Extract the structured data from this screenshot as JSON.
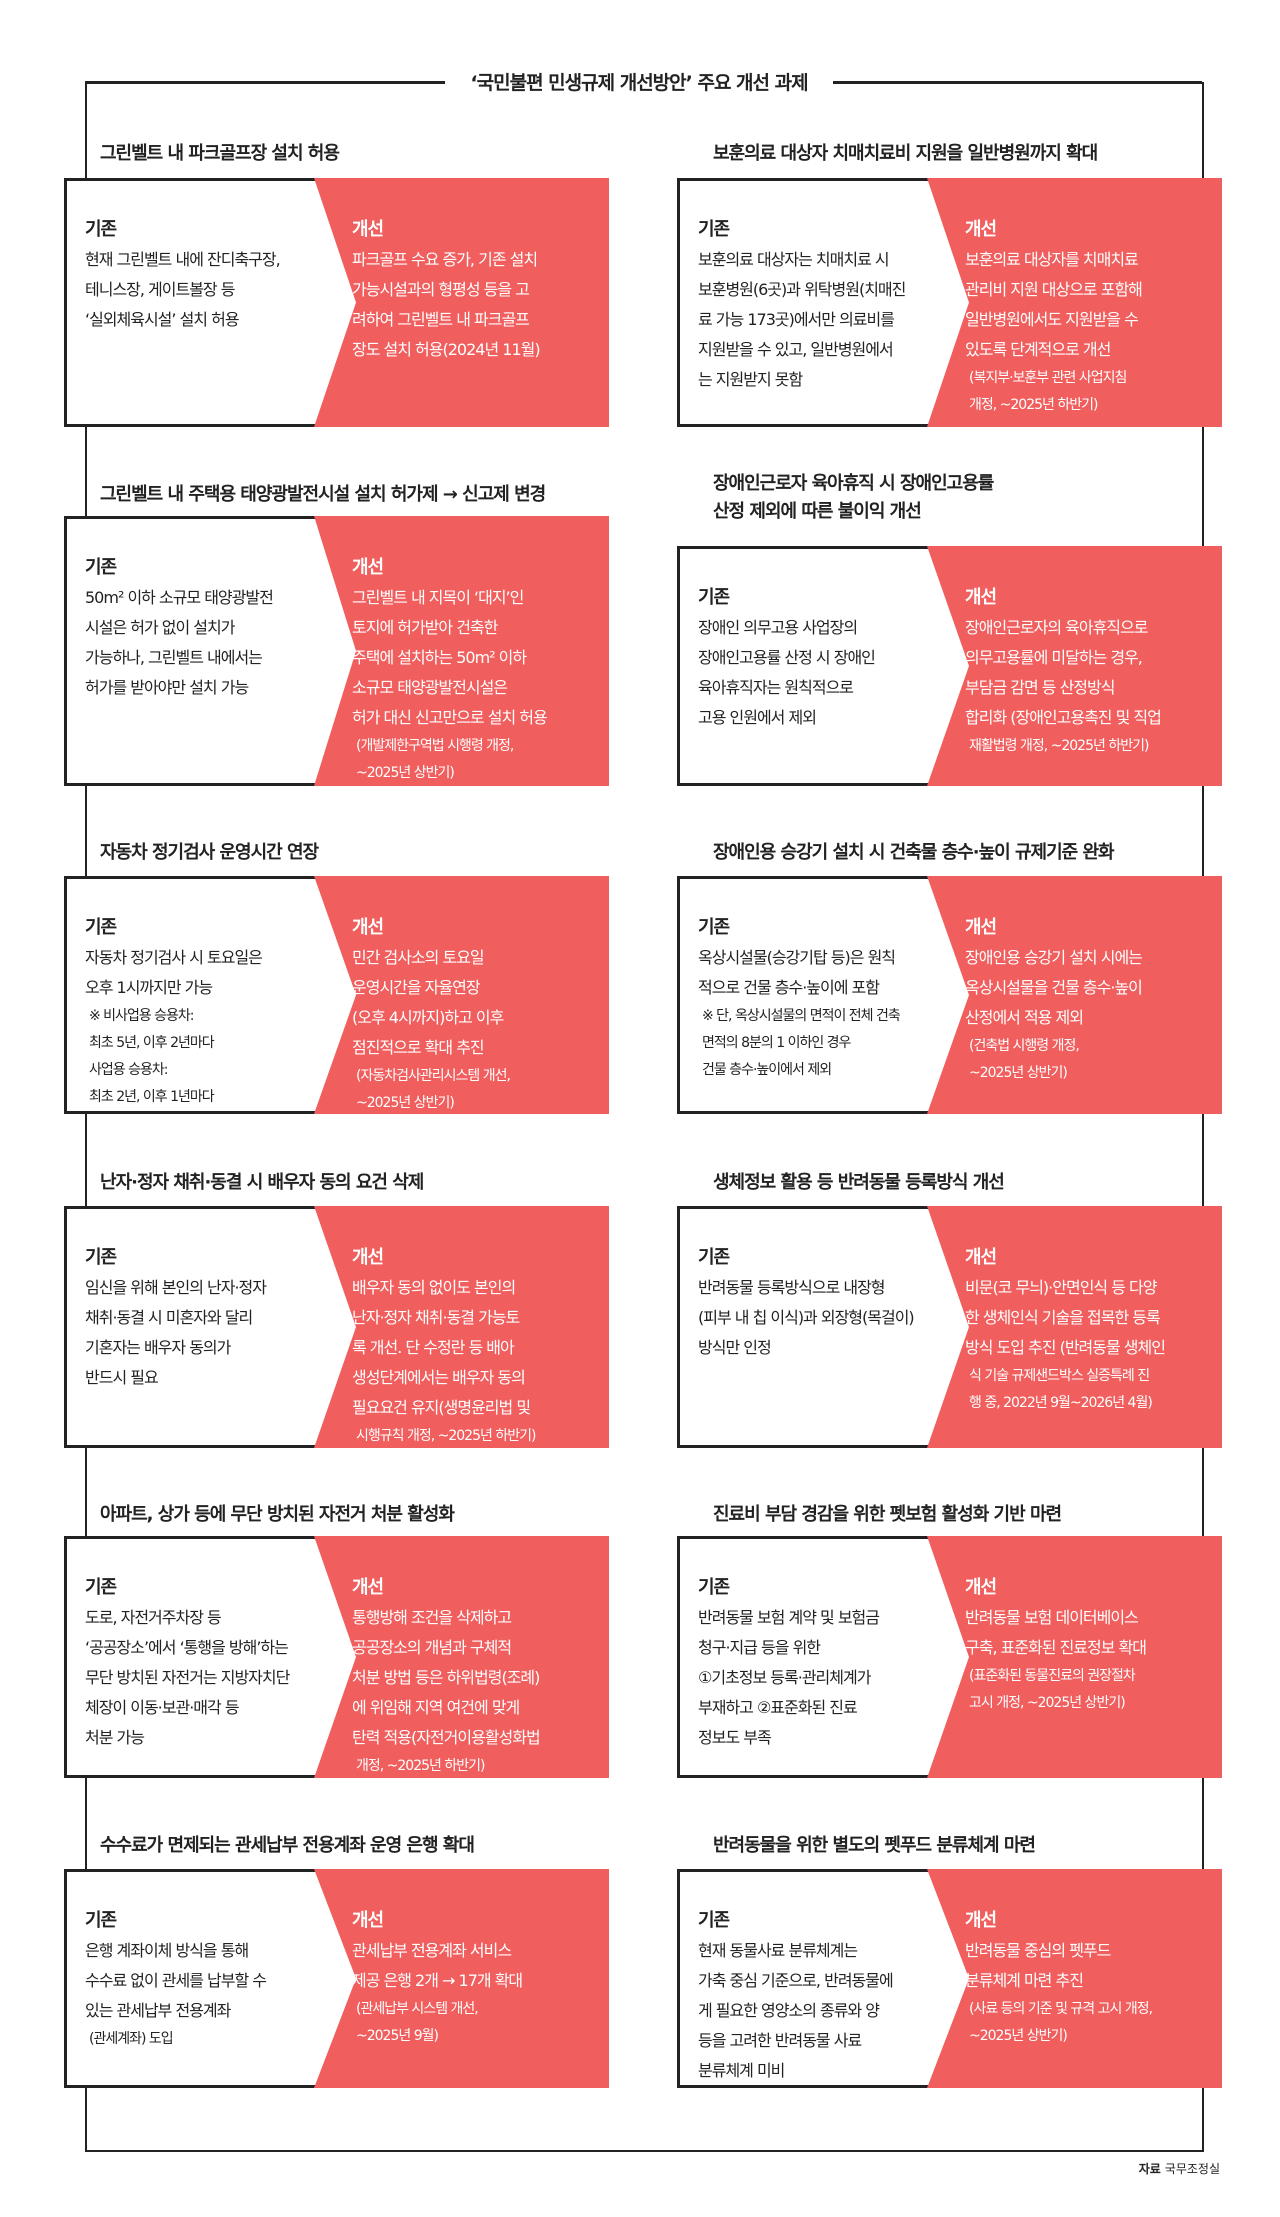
{
  "title": "‘국민불편 민생규제 개선방안’ 주요 개선 과제",
  "labels": {
    "before": "기존",
    "after": "개선"
  },
  "colors": {
    "accent": "#f05e5e",
    "border": "#222222"
  },
  "items": [
    {
      "title": [
        "그린벨트 내 파크골프장 설치 허용"
      ],
      "before": {
        "lines": [
          "현재 그린벨트 내에 잔디축구장,",
          "테니스장, 게이트볼장 등",
          "‘실외체육시설’ 설치 허용"
        ],
        "small": []
      },
      "after": {
        "lines": [
          "파크골프 수요 증가, 기존 설치",
          "가능시설과의 형평성 등을 고",
          "려하여 그린벨트 내 파크골프",
          "장도 설치 허용(2024년 11월)"
        ],
        "small": []
      }
    },
    {
      "title": [
        "보훈의료 대상자 치매치료비 지원을 일반병원까지 확대"
      ],
      "before": {
        "lines": [
          "보훈의료 대상자는 치매치료 시",
          "보훈병원(6곳)과 위탁병원(치매진",
          "료 가능 173곳)에서만 의료비를",
          "지원받을 수 있고, 일반병원에서",
          "는 지원받지 못함"
        ],
        "small": []
      },
      "after": {
        "lines": [
          "보훈의료 대상자를 치매치료",
          "관리비 지원 대상으로 포함해",
          "일반병원에서도 지원받을 수",
          "있도록 단계적으로 개선"
        ],
        "small": [
          "(복지부·보훈부 관련 사업지침",
          " 개정, ~2025년 하반기)"
        ]
      }
    },
    {
      "title": [
        "그린벨트 내 주택용 태양광발전시설 설치 허가제 → 신고제 변경"
      ],
      "before": {
        "lines": [
          "50m² 이하 소규모 태양광발전",
          "시설은 허가 없이 설치가",
          "가능하나, 그린벨트 내에서는",
          "허가를 받아야만 설치 가능"
        ],
        "small": []
      },
      "after": {
        "lines": [
          "그린벨트 내 지목이 ‘대지’인",
          "토지에 허가받아 건축한",
          "주택에 설치하는 50m² 이하",
          "소규모 태양광발전시설은",
          "허가 대신 신고만으로 설치 허용"
        ],
        "small": [
          "(개발제한구역법 시행령 개정,",
          " ~2025년 상반기)"
        ]
      }
    },
    {
      "title": [
        "장애인근로자 육아휴직 시 장애인고용률",
        "산정 제외에 따른 불이익 개선"
      ],
      "before": {
        "lines": [
          "장애인 의무고용 사업장의",
          "장애인고용률 산정 시 장애인",
          "육아휴직자는 원칙적으로",
          "고용 인원에서 제외"
        ],
        "small": []
      },
      "after": {
        "lines": [
          "장애인근로자의 육아휴직으로",
          "의무고용률에 미달하는 경우,",
          "부담금 감면 등 산정방식",
          "합리화 (장애인고용촉진 및 직업"
        ],
        "small": [
          "재활법령 개정, ~2025년 하반기)"
        ]
      }
    },
    {
      "title": [
        "자동차 정기검사 운영시간 연장"
      ],
      "before": {
        "lines": [
          "자동차 정기검사 시 토요일은",
          "오후 1시까지만 가능"
        ],
        "small": [
          "※ 비사업용 승용차:",
          "   최초 5년, 이후 2년마다",
          "  사업용 승용차:",
          "   최초 2년, 이후 1년마다"
        ]
      },
      "after": {
        "lines": [
          "민간 검사소의 토요일",
          "운영시간을 자율연장",
          "(오후 4시까지)하고 이후",
          "점진적으로 확대 추진"
        ],
        "small": [
          "(자동차검사관리시스템 개선,",
          " ~2025년 상반기)"
        ]
      }
    },
    {
      "title": [
        "장애인용 승강기 설치 시 건축물 층수·높이 규제기준 완화"
      ],
      "before": {
        "lines": [
          "옥상시설물(승강기탑 등)은 원칙",
          "적으로 건물 층수·높이에 포함"
        ],
        "small": [
          "※ 단, 옥상시설물의 면적이 전체 건축",
          "   면적의 8분의 1 이하인 경우",
          "   건물 층수·높이에서 제외"
        ]
      },
      "after": {
        "lines": [
          "장애인용 승강기 설치 시에는",
          "옥상시설물을 건물 층수·높이",
          "산정에서 적용 제외"
        ],
        "small": [
          "(건축법 시행령 개정,",
          "~2025년 상반기)"
        ]
      }
    },
    {
      "title": [
        "난자·정자 채취·동결 시 배우자 동의 요건 삭제"
      ],
      "before": {
        "lines": [
          "임신을 위해 본인의 난자·정자",
          "채취·동결 시 미혼자와 달리",
          "기혼자는 배우자 동의가",
          "반드시 필요"
        ],
        "small": []
      },
      "after": {
        "lines": [
          "배우자 동의 없이도 본인의",
          "난자·정자 채취·동결 가능토",
          "록 개선. 단 수정란 등 배아",
          "생성단계에서는 배우자 동의",
          "필요요건 유지(생명윤리법 및"
        ],
        "small": [
          "시행규칙 개정, ~2025년 하반기)"
        ]
      }
    },
    {
      "title": [
        "생체정보 활용 등 반려동물 등록방식 개선"
      ],
      "before": {
        "lines": [
          "반려동물 등록방식으로 내장형",
          "(피부 내 칩 이식)과 외장형(목걸이)",
          "방식만 인정"
        ],
        "small": []
      },
      "after": {
        "lines": [
          "비문(코 무늬)·안면인식 등 다양",
          "한 생체인식 기술을 접목한 등록",
          "방식 도입 추진 (반려동물 생체인"
        ],
        "small": [
          "식 기술 규제샌드박스 실증특례 진",
          "행 중, 2022년 9월~2026년 4월)"
        ]
      }
    },
    {
      "title": [
        "아파트, 상가 등에 무단 방치된 자전거 처분 활성화"
      ],
      "before": {
        "lines": [
          "도로, 자전거주차장 등",
          "‘공공장소’에서 ‘통행을 방해’하는",
          "무단 방치된 자전거는 지방자치단",
          "체장이 이동·보관·매각 등",
          "처분 가능"
        ],
        "small": []
      },
      "after": {
        "lines": [
          "통행방해 조건을 삭제하고",
          "공공장소의 개념과 구체적",
          "처분 방법 등은 하위법령(조례)",
          "에 위임해 지역 여건에 맞게",
          "탄력 적용(자전거이용활성화법"
        ],
        "small": [
          "개정, ~2025년 하반기)"
        ]
      }
    },
    {
      "title": [
        "진료비 부담 경감을 위한 펫보험 활성화 기반 마련"
      ],
      "before": {
        "lines": [
          "반려동물 보험 계약 및 보험금",
          "청구·지급 등을 위한",
          "①기초정보 등록·관리체계가",
          "부재하고 ②표준화된 진료",
          "정보도 부족"
        ],
        "small": []
      },
      "after": {
        "lines": [
          "반려동물 보험 데이터베이스",
          "구축, 표준화된 진료정보 확대"
        ],
        "small": [
          "(표준화된 동물진료의 권장절차",
          " 고시 개정, ~2025년 상반기)"
        ]
      }
    },
    {
      "title": [
        "수수료가 면제되는 관세납부 전용계좌 운영 은행 확대"
      ],
      "before": {
        "lines": [
          "은행 계좌이체 방식을 통해",
          "수수료 없이 관세를 납부할 수",
          "있는 관세납부 전용계좌"
        ],
        "small": [
          "(관세계좌) 도입"
        ]
      },
      "after": {
        "lines": [
          "관세납부 전용계좌 서비스",
          "제공 은행 2개 → 17개 확대"
        ],
        "small": [
          "(관세납부 시스템 개선,",
          " ~2025년 9월)"
        ]
      }
    },
    {
      "title": [
        "반려동물을 위한 별도의 펫푸드 분류체계 마련"
      ],
      "before": {
        "lines": [
          "현재 동물사료 분류체계는",
          "가축 중심 기준으로, 반려동물에",
          "게 필요한 영양소의 종류와 양",
          "등을 고려한 반려동물 사료",
          "분류체계 미비"
        ],
        "small": []
      },
      "after": {
        "lines": [
          "반려동물 중심의 펫푸드",
          "분류체계 마련 추진"
        ],
        "small": [
          "(사료 등의 기준 및 규격 고시 개정,",
          " ~2025년 상반기)"
        ]
      }
    }
  ],
  "source": {
    "label": "자료",
    "value": "국무조정실"
  }
}
